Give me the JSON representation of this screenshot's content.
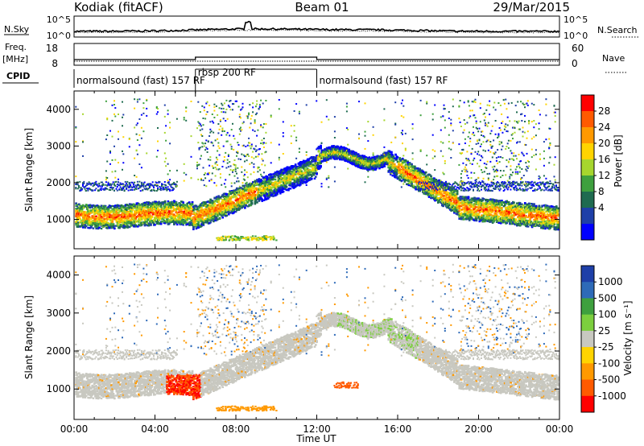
{
  "header": {
    "station": "Kodiak (fitACF)",
    "beam": "Beam 01",
    "date": "29/Mar/2015"
  },
  "summary": {
    "nsky_label": "N.Sky",
    "nsearch_label": "N.Search",
    "freq_label": "Freq.",
    "freq_unit": "[MHz]",
    "nave_label": "Nave",
    "cpid_label": "CPID",
    "noise_ticks_left": [
      "10^5",
      "10^0"
    ],
    "noise_ticks_right": [
      "10^5",
      "10^0"
    ],
    "freq_ticks": [
      "18",
      "8"
    ],
    "nave_ticks": [
      "60",
      "0"
    ],
    "cpid_segments": [
      {
        "label": "normalsound (fast) 157 RF",
        "start_hr": 0,
        "end_hr": 6.0
      },
      {
        "label": "rbsp 200 RF",
        "start_hr": 6.0,
        "end_hr": 12.0
      },
      {
        "label": "normalsound (fast) 157 RF",
        "start_hr": 12.0,
        "end_hr": 24.0
      }
    ]
  },
  "chart_data": [
    {
      "type": "heatmap",
      "name": "power-panel",
      "ylabel": "Slant Range [km]",
      "xlabel": "",
      "x_range_hr": [
        0,
        24
      ],
      "ylim": [
        200,
        4500
      ],
      "yticks": [
        "1000",
        "2000",
        "3000",
        "4000"
      ],
      "colorbar": {
        "label": "Power [dB]",
        "ticks": [
          "28",
          "24",
          "20",
          "16",
          "12",
          "8",
          "4"
        ],
        "colors": [
          "#ff0000",
          "#ff5a00",
          "#ff9900",
          "#ffd400",
          "#a6d62e",
          "#3ea03e",
          "#1f6b50",
          "#1e3fa8",
          "#0000ff"
        ]
      }
    },
    {
      "type": "heatmap",
      "name": "velocity-panel",
      "ylabel": "Slant Range [km]",
      "xlabel": "Time UT",
      "x_range_hr": [
        0,
        24
      ],
      "ylim": [
        200,
        4500
      ],
      "yticks": [
        "1000",
        "2000",
        "3000",
        "4000"
      ],
      "xticks": [
        "00:00",
        "04:00",
        "08:00",
        "12:00",
        "16:00",
        "20:00",
        "00:00"
      ],
      "colorbar": {
        "label": "Velocity [m s⁻¹]",
        "ticks": [
          "1000",
          "500",
          "100",
          "25",
          "-25",
          "-100",
          "-500",
          "-1000"
        ],
        "colors": [
          "#1e3fa8",
          "#2e6ab8",
          "#3ea03e",
          "#7ccf3e",
          "#c8c8c0",
          "#ffd400",
          "#ff9900",
          "#ff5a00",
          "#ff0000"
        ]
      }
    }
  ]
}
